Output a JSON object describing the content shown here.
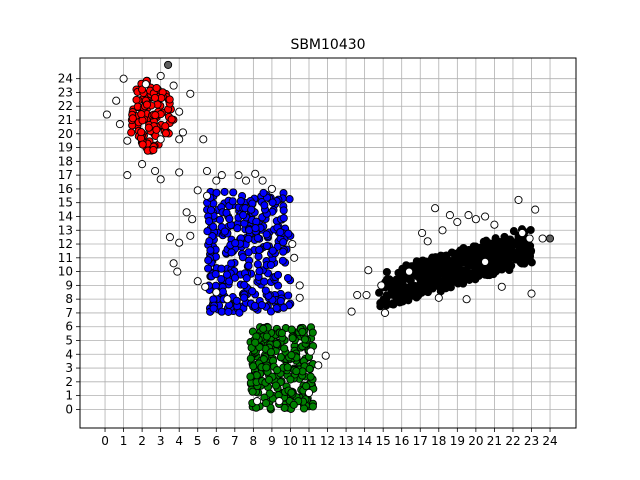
{
  "chart_data": {
    "type": "scatter",
    "title": "SBM10430",
    "xlabel": "",
    "ylabel": "",
    "xlim": [
      -1.35,
      25.4
    ],
    "ylim": [
      -1.35,
      25.5
    ],
    "xticks": [
      0,
      1,
      2,
      3,
      4,
      5,
      6,
      7,
      8,
      9,
      10,
      11,
      12,
      13,
      14,
      15,
      16,
      17,
      18,
      19,
      20,
      21,
      22,
      23,
      24
    ],
    "yticks": [
      0,
      1,
      2,
      3,
      4,
      5,
      6,
      7,
      8,
      9,
      10,
      11,
      12,
      13,
      14,
      15,
      16,
      17,
      18,
      19,
      20,
      21,
      22,
      23,
      24
    ],
    "grid": true,
    "legend": "none",
    "clusters": [
      {
        "color": "#ff0000",
        "shape": "ellipse",
        "center": [
          2.5,
          21.3
        ],
        "radius": [
          1.3,
          2.6
        ],
        "count": 110,
        "seed": 11
      },
      {
        "color": "#0000ff",
        "shape": "box",
        "x": [
          5.5,
          10.0
        ],
        "y": [
          7.0,
          15.8
        ],
        "count": 320,
        "seed": 23
      },
      {
        "color": "#008000",
        "shape": "box",
        "x": [
          7.8,
          11.3
        ],
        "y": [
          0.0,
          6.0
        ],
        "count": 260,
        "seed": 37
      },
      {
        "color": "#000000",
        "shape": "band",
        "from": [
          15.0,
          8.6
        ],
        "to": [
          22.8,
          11.9
        ],
        "halfwidth": 1.3,
        "count": 520,
        "seed": 53
      }
    ],
    "outliers": {
      "color": "#ffffff",
      "points": [
        [
          1.0,
          24.0
        ],
        [
          3.0,
          24.2
        ],
        [
          2.2,
          23.6
        ],
        [
          3.7,
          23.5
        ],
        [
          0.6,
          22.4
        ],
        [
          4.6,
          22.9
        ],
        [
          0.1,
          21.4
        ],
        [
          4.0,
          21.6
        ],
        [
          0.8,
          20.7
        ],
        [
          1.2,
          19.5
        ],
        [
          4.0,
          19.6
        ],
        [
          4.2,
          20.1
        ],
        [
          3.0,
          19.6
        ],
        [
          2.0,
          17.8
        ],
        [
          2.7,
          17.3
        ],
        [
          1.2,
          17.0
        ],
        [
          3.0,
          16.7
        ],
        [
          4.0,
          17.2
        ],
        [
          5.5,
          17.3
        ],
        [
          5.3,
          19.6
        ],
        [
          6.0,
          16.6
        ],
        [
          6.3,
          17.0
        ],
        [
          5.0,
          15.9
        ],
        [
          5.5,
          15.5
        ],
        [
          7.2,
          17.0
        ],
        [
          7.6,
          16.6
        ],
        [
          8.1,
          17.1
        ],
        [
          8.5,
          16.6
        ],
        [
          9.0,
          16.0
        ],
        [
          4.4,
          14.3
        ],
        [
          4.7,
          13.8
        ],
        [
          3.5,
          12.5
        ],
        [
          4.0,
          12.1
        ],
        [
          4.6,
          12.6
        ],
        [
          3.7,
          10.6
        ],
        [
          3.9,
          10.0
        ],
        [
          5.0,
          9.3
        ],
        [
          5.4,
          8.9
        ],
        [
          6.0,
          8.5
        ],
        [
          6.6,
          8.0
        ],
        [
          10.1,
          12.0
        ],
        [
          10.2,
          11.0
        ],
        [
          10.5,
          9.0
        ],
        [
          10.5,
          8.1
        ],
        [
          11.1,
          4.2
        ],
        [
          11.9,
          3.9
        ],
        [
          11.5,
          3.2
        ],
        [
          11.0,
          1.2
        ],
        [
          8.2,
          0.6
        ],
        [
          9.4,
          0.6
        ],
        [
          13.3,
          7.1
        ],
        [
          13.6,
          8.3
        ],
        [
          14.1,
          8.3
        ],
        [
          14.2,
          10.1
        ],
        [
          14.9,
          9.0
        ],
        [
          15.1,
          7.0
        ],
        [
          16.4,
          10.0
        ],
        [
          17.1,
          12.8
        ],
        [
          17.4,
          12.2
        ],
        [
          17.8,
          14.6
        ],
        [
          18.2,
          13.0
        ],
        [
          18.6,
          14.1
        ],
        [
          19.0,
          13.6
        ],
        [
          19.6,
          14.1
        ],
        [
          20.0,
          13.8
        ],
        [
          20.5,
          14.0
        ],
        [
          21.0,
          13.4
        ],
        [
          22.3,
          15.2
        ],
        [
          22.5,
          12.8
        ],
        [
          22.9,
          12.4
        ],
        [
          23.2,
          14.5
        ],
        [
          23.6,
          12.4
        ],
        [
          20.5,
          10.7
        ],
        [
          21.4,
          8.9
        ],
        [
          23.0,
          8.4
        ],
        [
          19.5,
          8.0
        ],
        [
          18.0,
          8.1
        ]
      ]
    },
    "highlights": {
      "color": "#606060",
      "points": [
        [
          3.4,
          25.0
        ],
        [
          24.0,
          12.4
        ]
      ]
    }
  }
}
